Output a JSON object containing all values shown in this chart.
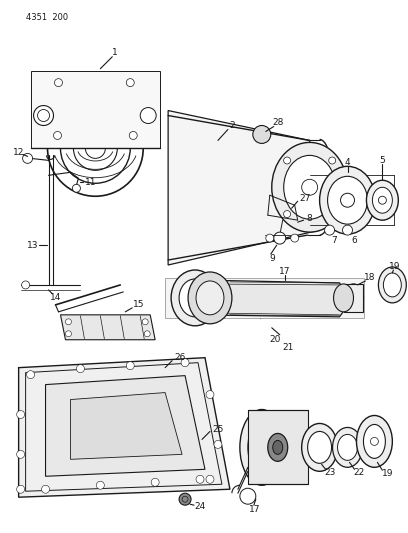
{
  "header_text": "4351  200",
  "background_color": "#ffffff",
  "line_color": "#1a1a1a",
  "figsize": [
    4.08,
    5.33
  ],
  "dpi": 100
}
